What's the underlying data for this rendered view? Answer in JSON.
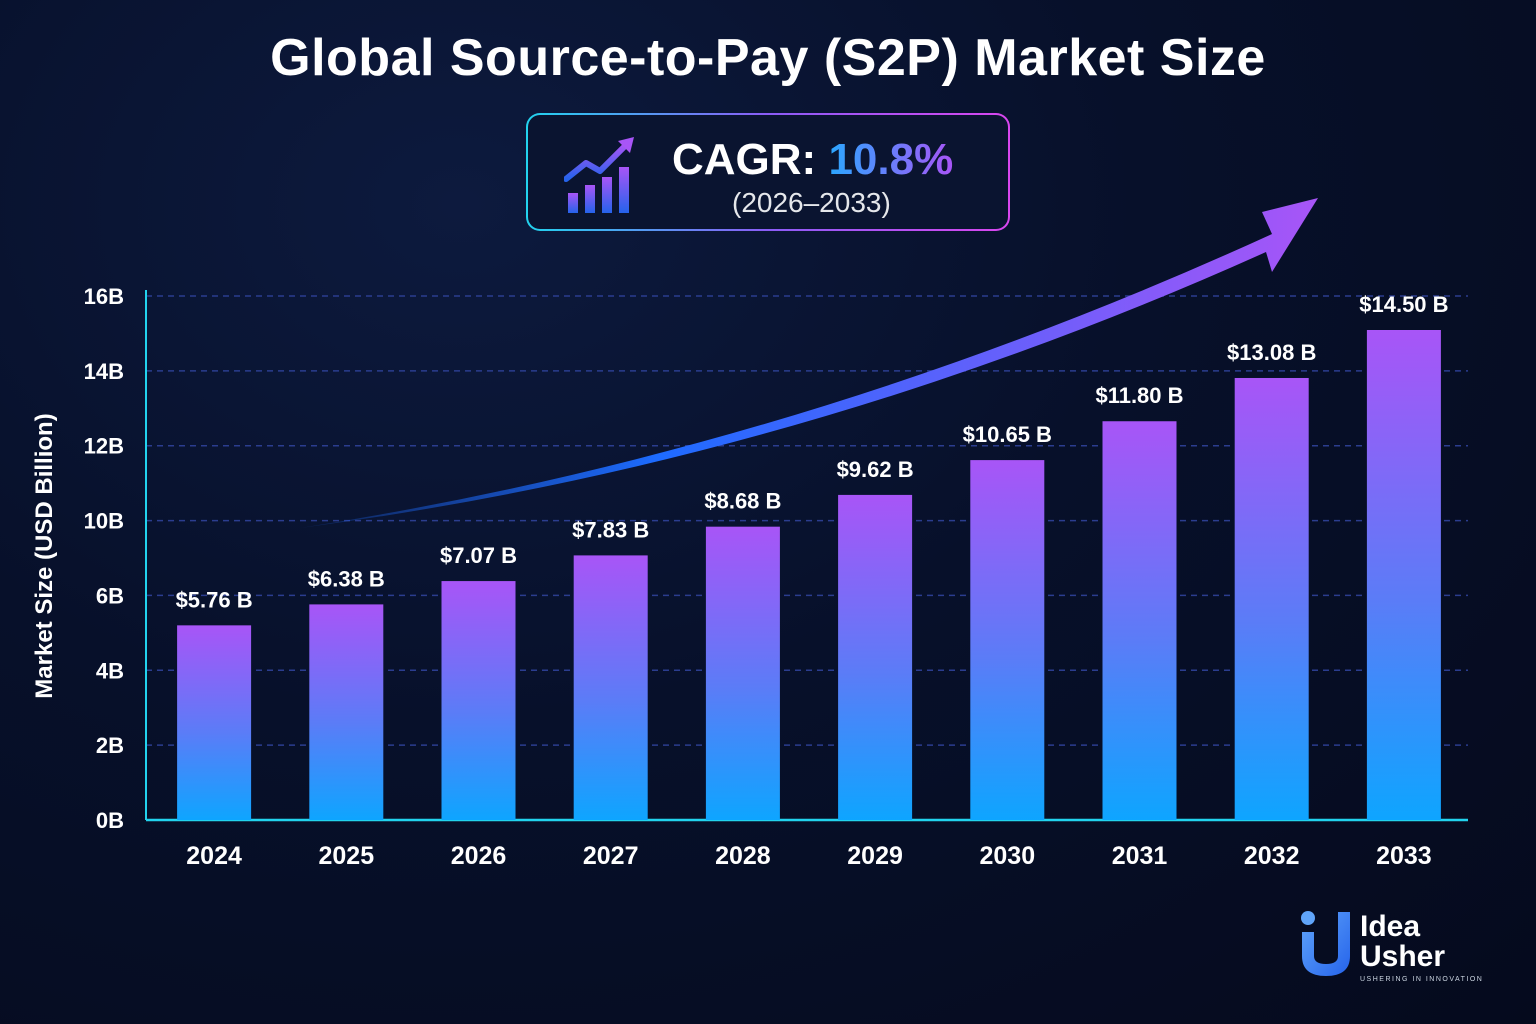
{
  "title": "Global Source-to-Pay (S2P) Market Size",
  "cagr": {
    "label": "CAGR:",
    "value": "10.8%",
    "period": "(2026–2033)"
  },
  "logo": {
    "line1": "Idea",
    "line2": "Usher",
    "tagline": "USHERING IN INNOVATION"
  },
  "colors": {
    "background": "#07102a",
    "bar_top": "#a855f7",
    "bar_bottom": "#0ea5ff",
    "arrow_start": "#1d6bff",
    "arrow_end": "#a855f7",
    "gridline": "#2b3d8f",
    "axis": "#22d3ee"
  },
  "chart_data": {
    "type": "bar",
    "categories": [
      "2024",
      "2025",
      "2026",
      "2027",
      "2028",
      "2029",
      "2030",
      "2031",
      "2032",
      "2033"
    ],
    "values": [
      5.76,
      6.38,
      7.07,
      7.83,
      8.68,
      9.62,
      10.65,
      11.8,
      13.08,
      14.5
    ],
    "data_labels": [
      "$5.76 B",
      "$6.38 B",
      "$7.07 B",
      "$7.83 B",
      "$8.68 B",
      "$9.62 B",
      "$10.65 B",
      "$11.80 B",
      "$13.08 B",
      "$14.50 B"
    ],
    "title": "Global Source-to-Pay (S2P) Market Size",
    "xlabel": "",
    "ylabel": "Market Size (USD Billion)",
    "ytick_labels": [
      "0B",
      "2B",
      "4B",
      "6B",
      "10B",
      "12B",
      "14B",
      "16B"
    ],
    "grid": true,
    "trend_arrow": true
  }
}
